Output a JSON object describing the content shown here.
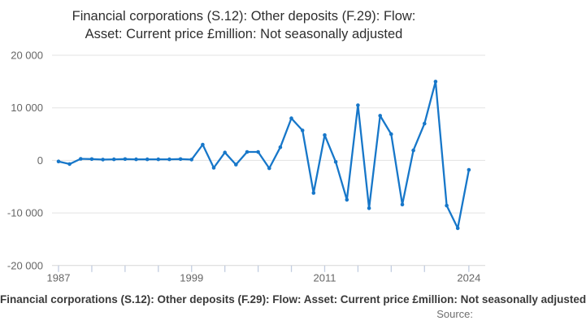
{
  "title": {
    "line1": "Financial corporations (S.12): Other deposits (F.29): Flow:",
    "line2": "Asset: Current price £million: Not seasonally adjusted"
  },
  "footer": {
    "caption": "Financial corporations (S.12): Other deposits (F.29): Flow: Asset: Current price £million: Not seasonally adjusted",
    "source": "Source:"
  },
  "chart_data": {
    "type": "line",
    "title": "Financial corporations (S.12): Other deposits (F.29): Flow: Asset: Current price £million: Not seasonally adjusted",
    "xlabel": "",
    "ylabel": "",
    "ylim": [
      -20000,
      20000
    ],
    "xlim": [
      1986.5,
      2025.3
    ],
    "grid": "horizontal",
    "legend_position": "none",
    "x": [
      1987,
      1988,
      1989,
      1990,
      1991,
      1992,
      1993,
      1994,
      1995,
      1996,
      1997,
      1998,
      1999,
      2000,
      2001,
      2002,
      2003,
      2004,
      2005,
      2006,
      2007,
      2008,
      2009,
      2010,
      2011,
      2012,
      2013,
      2014,
      2015,
      2016,
      2017,
      2018,
      2019,
      2020,
      2021,
      2022,
      2023,
      2024
    ],
    "values": [
      -200,
      -700,
      300,
      250,
      150,
      200,
      250,
      200,
      200,
      200,
      200,
      250,
      150,
      3000,
      -1400,
      1500,
      -800,
      1600,
      1600,
      -1500,
      2500,
      8000,
      5700,
      -6200,
      4800,
      -300,
      -7500,
      10500,
      -9100,
      8500,
      5000,
      -8400,
      1900,
      7000,
      15000,
      -8600,
      -12900,
      -1800
    ],
    "y_ticks": [
      {
        "value": 20000,
        "label": "20 000"
      },
      {
        "value": 10000,
        "label": "10 000"
      },
      {
        "value": 0,
        "label": "0"
      },
      {
        "value": -10000,
        "label": "-10 000"
      },
      {
        "value": -20000,
        "label": "-20 000"
      }
    ],
    "x_tick_years": [
      1987,
      1990,
      1993,
      1996,
      1999,
      2002,
      2005,
      2008,
      2011,
      2014,
      2017,
      2020,
      2024
    ],
    "x_label_years": [
      1987,
      1999,
      2011,
      2024
    ],
    "line_color": "#1777c9",
    "grid_color": "#e3e3e3",
    "axis_line_color": "#d6d6d6",
    "tick_color": "#c2cde0",
    "axis_text_color": "#666666"
  }
}
